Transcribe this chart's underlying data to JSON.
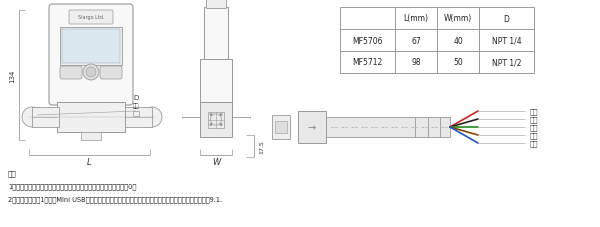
{
  "bg_color": "#ffffff",
  "line_color": "#999999",
  "text_color": "#333333",
  "table_headers": [
    "",
    "L(mm)",
    "W(mm)",
    "D"
  ],
  "table_rows": [
    [
      "MF5706",
      "67",
      "40",
      "NPT 1/4"
    ],
    [
      "MF5712",
      "98",
      "50",
      "NPT 1/2"
    ]
  ],
  "wire_labels": [
    "红色",
    "黑色",
    "绿色",
    "棕色",
    "蓝色"
  ],
  "note_line0": "注：",
  "note_line1": "1）按照箭头指示方向接入气流，如果反接，则显示的流量将始终为0；",
  "note_line2": "2）产品配有一根1米长带Mini USB插头的连接通讯电缆，该线缆可以实现外部供电和通讯；其引线定义见9.1."
}
